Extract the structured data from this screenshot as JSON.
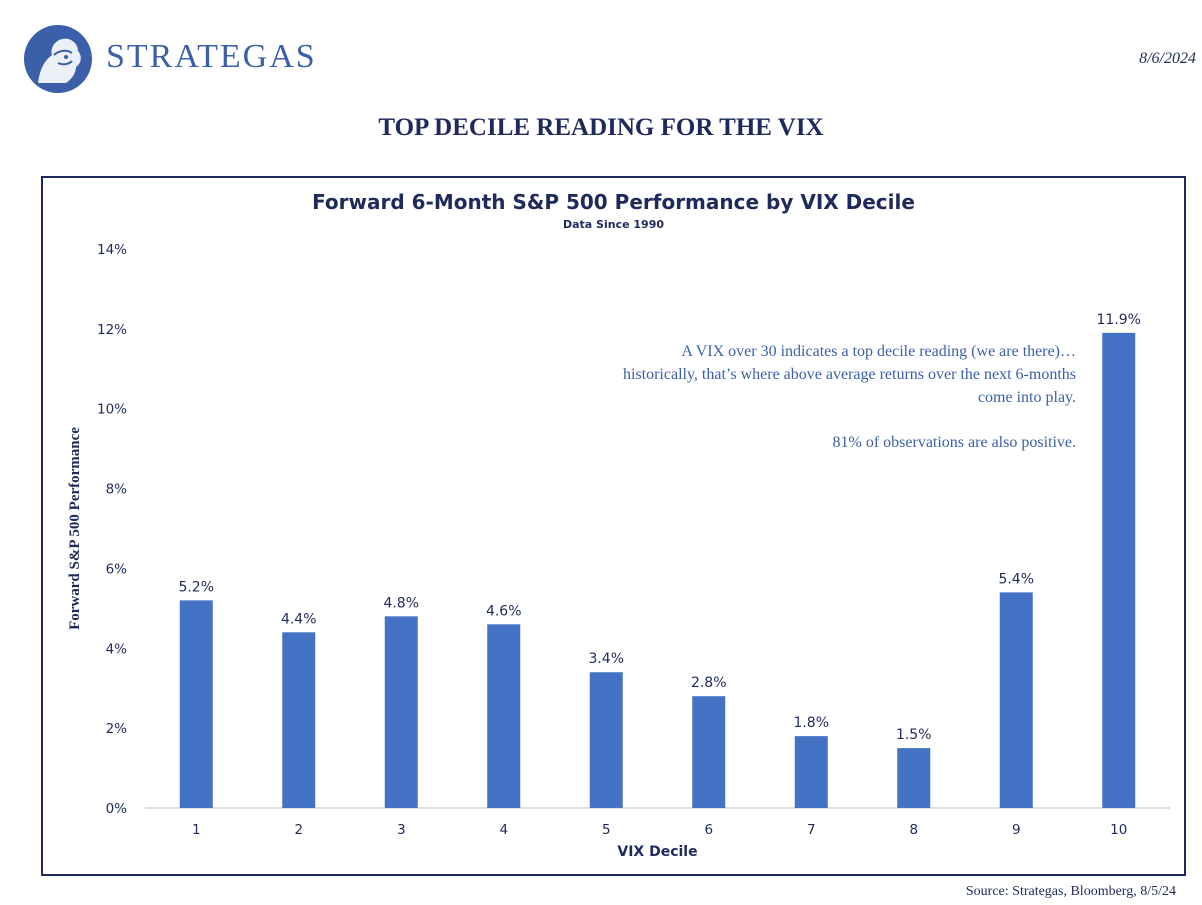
{
  "header": {
    "brand": "STRATEGAS",
    "date": "8/6/2024",
    "headline": "TOP DECILE READING FOR THE VIX"
  },
  "annotation": {
    "line1": "A VIX over 30 indicates a top decile reading (we are there)… historically, that’s where above average returns over the next 6-months come into play.",
    "line2": "81% of observations are also positive."
  },
  "source": "Source: Strategas, Bloomberg, 8/5/24",
  "colors": {
    "bar": "#4472c4",
    "text": "#1f2a5c",
    "brand": "#3b5fa8"
  },
  "chart_data": {
    "type": "bar",
    "title": "Forward 6-Month S&P 500 Performance by VIX Decile",
    "subtitle": "Data Since 1990",
    "xlabel": "VIX Decile",
    "ylabel": "Forward S&P 500 Performance",
    "categories": [
      "1",
      "2",
      "3",
      "4",
      "5",
      "6",
      "7",
      "8",
      "9",
      "10"
    ],
    "values": [
      5.2,
      4.4,
      4.8,
      4.6,
      3.4,
      2.8,
      1.8,
      1.5,
      5.4,
      11.9
    ],
    "data_labels": [
      "5.2%",
      "4.4%",
      "4.8%",
      "4.6%",
      "3.4%",
      "2.8%",
      "1.8%",
      "1.5%",
      "5.4%",
      "11.9%"
    ],
    "yticks": [
      "0%",
      "2%",
      "4%",
      "6%",
      "8%",
      "10%",
      "12%",
      "14%"
    ],
    "ylim": [
      0,
      14
    ],
    "grid": false
  }
}
